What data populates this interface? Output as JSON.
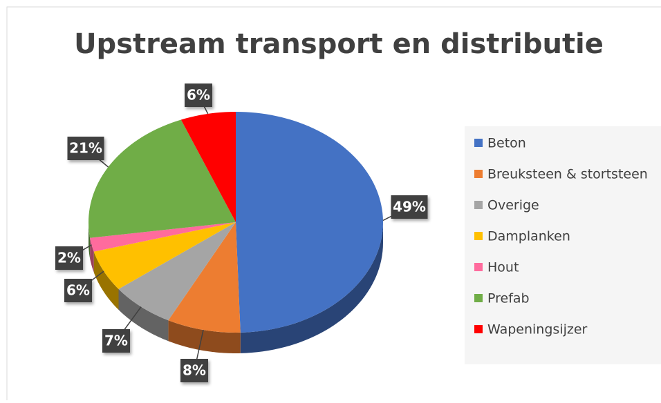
{
  "chart_data": {
    "type": "pie",
    "title": "Upstream transport en distributie",
    "categories": [
      "Beton",
      "Breuksteen & stortsteen",
      "Overige",
      "Damplanken",
      "Hout",
      "Prefab",
      "Wapeningsijzer"
    ],
    "values": [
      49,
      8,
      7,
      6,
      2,
      21,
      6
    ],
    "value_labels": [
      "49%",
      "8%",
      "7%",
      "6%",
      "2%",
      "21%",
      "6%"
    ],
    "colors": [
      "#4472c4",
      "#ed7d31",
      "#a5a5a5",
      "#ffc000",
      "#ff6b9d",
      "#70ad47",
      "#ff0000"
    ],
    "legend": "right"
  }
}
